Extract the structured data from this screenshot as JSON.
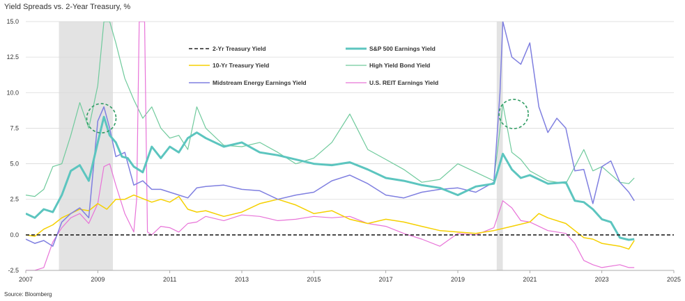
{
  "title": "Yield Spreads vs. 2-Year Treasury, %",
  "source": "Source: Bloomberg",
  "chart_data": {
    "type": "line",
    "xlim": [
      2007,
      2025
    ],
    "ylim": [
      -2.5,
      15.0
    ],
    "x_ticks": [
      2007,
      2009,
      2011,
      2013,
      2015,
      2017,
      2019,
      2021,
      2023,
      2025
    ],
    "x_tick_labels": [
      "2007",
      "2009",
      "2011",
      "2013",
      "2015",
      "2017",
      "2019",
      "2021",
      "2023",
      "2025"
    ],
    "y_ticks": [
      -2.5,
      0.0,
      2.5,
      5.0,
      7.5,
      10.0,
      12.5,
      15.0
    ],
    "y_tick_labels": [
      "-2.5",
      "0.0",
      "2.5",
      "5.0",
      "7.5",
      "10.0",
      "12.5",
      "15.0"
    ],
    "grid": "horizontal",
    "legend": "top-center",
    "shaded_periods": [
      [
        2007.92,
        2009.42
      ],
      [
        2020.08,
        2020.25
      ]
    ],
    "highlight_circles": [
      {
        "x": 2009.1,
        "y": 8.2
      },
      {
        "x": 2020.55,
        "y": 8.5
      }
    ],
    "series": [
      {
        "name": "2-Yr Treasury Yield",
        "color": "#222222",
        "dash": "dashed",
        "width": 1.6,
        "points": [
          [
            2007,
            0
          ],
          [
            2025,
            0
          ]
        ]
      },
      {
        "name": "S&P 500 Earnings Yield",
        "color": "#5cc5bf",
        "dash": "solid",
        "width": 3,
        "points": [
          [
            2007.0,
            1.5
          ],
          [
            2007.25,
            1.2
          ],
          [
            2007.5,
            1.8
          ],
          [
            2007.75,
            1.6
          ],
          [
            2008.0,
            2.8
          ],
          [
            2008.25,
            4.5
          ],
          [
            2008.5,
            4.9
          ],
          [
            2008.75,
            3.8
          ],
          [
            2009.0,
            6.5
          ],
          [
            2009.17,
            8.3
          ],
          [
            2009.33,
            7.0
          ],
          [
            2009.5,
            6.5
          ],
          [
            2009.67,
            5.5
          ],
          [
            2009.83,
            5.4
          ],
          [
            2010.0,
            4.8
          ],
          [
            2010.25,
            4.4
          ],
          [
            2010.5,
            6.2
          ],
          [
            2010.75,
            5.4
          ],
          [
            2011.0,
            6.2
          ],
          [
            2011.25,
            5.8
          ],
          [
            2011.5,
            6.8
          ],
          [
            2011.75,
            7.2
          ],
          [
            2012.0,
            6.8
          ],
          [
            2012.5,
            6.2
          ],
          [
            2013.0,
            6.5
          ],
          [
            2013.5,
            5.8
          ],
          [
            2014.0,
            5.6
          ],
          [
            2014.5,
            5.3
          ],
          [
            2015.0,
            5.0
          ],
          [
            2015.5,
            4.9
          ],
          [
            2016.0,
            5.1
          ],
          [
            2016.5,
            4.6
          ],
          [
            2017.0,
            4.0
          ],
          [
            2017.5,
            3.8
          ],
          [
            2018.0,
            3.5
          ],
          [
            2018.5,
            3.3
          ],
          [
            2019.0,
            2.8
          ],
          [
            2019.5,
            3.4
          ],
          [
            2020.0,
            3.6
          ],
          [
            2020.25,
            5.7
          ],
          [
            2020.5,
            4.6
          ],
          [
            2020.75,
            4.0
          ],
          [
            2021.0,
            4.2
          ],
          [
            2021.5,
            3.6
          ],
          [
            2022.0,
            3.7
          ],
          [
            2022.25,
            2.4
          ],
          [
            2022.5,
            2.3
          ],
          [
            2022.75,
            1.8
          ],
          [
            2023.0,
            1.1
          ],
          [
            2023.25,
            0.9
          ],
          [
            2023.5,
            -0.2
          ],
          [
            2023.75,
            -0.35
          ],
          [
            2023.9,
            -0.3
          ]
        ]
      },
      {
        "name": "10-Yr Treasury Yield",
        "color": "#f5d000",
        "dash": "solid",
        "width": 1.5,
        "points": [
          [
            2007.0,
            0.0
          ],
          [
            2007.25,
            -0.1
          ],
          [
            2007.5,
            0.4
          ],
          [
            2007.75,
            0.7
          ],
          [
            2008.0,
            1.2
          ],
          [
            2008.5,
            1.8
          ],
          [
            2008.75,
            1.7
          ],
          [
            2009.0,
            2.2
          ],
          [
            2009.25,
            1.8
          ],
          [
            2009.5,
            2.5
          ],
          [
            2009.75,
            2.5
          ],
          [
            2010.0,
            2.8
          ],
          [
            2010.5,
            2.3
          ],
          [
            2010.75,
            2.5
          ],
          [
            2011.0,
            2.3
          ],
          [
            2011.25,
            2.7
          ],
          [
            2011.5,
            1.8
          ],
          [
            2011.75,
            1.6
          ],
          [
            2012.0,
            1.7
          ],
          [
            2012.5,
            1.3
          ],
          [
            2013.0,
            1.6
          ],
          [
            2013.5,
            2.2
          ],
          [
            2014.0,
            2.5
          ],
          [
            2014.5,
            2.1
          ],
          [
            2015.0,
            1.5
          ],
          [
            2015.5,
            1.7
          ],
          [
            2016.0,
            1.1
          ],
          [
            2016.5,
            0.8
          ],
          [
            2017.0,
            1.1
          ],
          [
            2017.5,
            0.9
          ],
          [
            2018.0,
            0.6
          ],
          [
            2018.5,
            0.3
          ],
          [
            2019.0,
            0.2
          ],
          [
            2019.5,
            0.1
          ],
          [
            2020.0,
            0.3
          ],
          [
            2020.5,
            0.6
          ],
          [
            2021.0,
            0.9
          ],
          [
            2021.25,
            1.5
          ],
          [
            2021.5,
            1.2
          ],
          [
            2022.0,
            0.8
          ],
          [
            2022.25,
            0.3
          ],
          [
            2022.5,
            -0.2
          ],
          [
            2022.75,
            -0.3
          ],
          [
            2023.0,
            -0.6
          ],
          [
            2023.5,
            -0.8
          ],
          [
            2023.75,
            -1.0
          ],
          [
            2023.9,
            -0.4
          ]
        ]
      },
      {
        "name": "High Yield Bond Yield",
        "color": "#6fca9c",
        "dash": "solid",
        "width": 1.2,
        "points": [
          [
            2007.0,
            2.8
          ],
          [
            2007.25,
            2.7
          ],
          [
            2007.5,
            3.2
          ],
          [
            2007.75,
            4.8
          ],
          [
            2008.0,
            5.0
          ],
          [
            2008.25,
            7.0
          ],
          [
            2008.5,
            9.3
          ],
          [
            2008.75,
            7.5
          ],
          [
            2009.0,
            10.5
          ],
          [
            2009.17,
            15.0
          ],
          [
            2009.33,
            15.0
          ],
          [
            2009.5,
            13.5
          ],
          [
            2009.75,
            11.0
          ],
          [
            2010.0,
            9.5
          ],
          [
            2010.25,
            8.2
          ],
          [
            2010.5,
            9.0
          ],
          [
            2010.75,
            7.5
          ],
          [
            2011.0,
            6.8
          ],
          [
            2011.25,
            7.0
          ],
          [
            2011.5,
            6.0
          ],
          [
            2011.75,
            9.0
          ],
          [
            2012.0,
            7.5
          ],
          [
            2012.5,
            6.3
          ],
          [
            2013.0,
            6.2
          ],
          [
            2013.5,
            6.5
          ],
          [
            2014.0,
            5.8
          ],
          [
            2014.5,
            5.0
          ],
          [
            2015.0,
            5.4
          ],
          [
            2015.5,
            6.5
          ],
          [
            2016.0,
            8.5
          ],
          [
            2016.5,
            6.0
          ],
          [
            2017.0,
            5.3
          ],
          [
            2017.5,
            4.6
          ],
          [
            2018.0,
            3.7
          ],
          [
            2018.5,
            3.9
          ],
          [
            2019.0,
            5.0
          ],
          [
            2019.5,
            4.4
          ],
          [
            2020.0,
            3.8
          ],
          [
            2020.25,
            9.2
          ],
          [
            2020.5,
            5.8
          ],
          [
            2020.75,
            5.3
          ],
          [
            2021.0,
            4.5
          ],
          [
            2021.5,
            3.8
          ],
          [
            2022.0,
            3.6
          ],
          [
            2022.5,
            6.0
          ],
          [
            2022.75,
            4.5
          ],
          [
            2023.0,
            4.8
          ],
          [
            2023.5,
            3.7
          ],
          [
            2023.75,
            3.6
          ],
          [
            2023.9,
            4.0
          ]
        ]
      },
      {
        "name": "Midstream Energy Earnings Yield",
        "color": "#7f7fe0",
        "dash": "solid",
        "width": 1.5,
        "points": [
          [
            2007.0,
            -0.3
          ],
          [
            2007.25,
            -0.6
          ],
          [
            2007.5,
            -0.4
          ],
          [
            2007.75,
            -0.8
          ],
          [
            2008.0,
            0.9
          ],
          [
            2008.25,
            1.5
          ],
          [
            2008.5,
            1.9
          ],
          [
            2008.75,
            1.2
          ],
          [
            2009.0,
            8.0
          ],
          [
            2009.17,
            9.0
          ],
          [
            2009.33,
            7.5
          ],
          [
            2009.5,
            5.5
          ],
          [
            2009.75,
            5.8
          ],
          [
            2010.0,
            3.5
          ],
          [
            2010.25,
            3.8
          ],
          [
            2010.5,
            3.2
          ],
          [
            2010.75,
            3.2
          ],
          [
            2011.0,
            3.0
          ],
          [
            2011.25,
            2.8
          ],
          [
            2011.5,
            2.6
          ],
          [
            2011.75,
            3.3
          ],
          [
            2012.0,
            3.4
          ],
          [
            2012.5,
            3.5
          ],
          [
            2013.0,
            3.2
          ],
          [
            2013.5,
            3.1
          ],
          [
            2014.0,
            2.5
          ],
          [
            2014.5,
            2.8
          ],
          [
            2015.0,
            3.0
          ],
          [
            2015.5,
            3.8
          ],
          [
            2016.0,
            4.2
          ],
          [
            2016.5,
            3.6
          ],
          [
            2017.0,
            2.8
          ],
          [
            2017.5,
            2.6
          ],
          [
            2018.0,
            3.0
          ],
          [
            2018.5,
            3.2
          ],
          [
            2019.0,
            3.3
          ],
          [
            2019.5,
            3.0
          ],
          [
            2020.0,
            3.7
          ],
          [
            2020.17,
            10.0
          ],
          [
            2020.25,
            15.0
          ],
          [
            2020.5,
            12.5
          ],
          [
            2020.75,
            12.0
          ],
          [
            2021.0,
            13.5
          ],
          [
            2021.25,
            9.0
          ],
          [
            2021.5,
            7.2
          ],
          [
            2021.75,
            8.2
          ],
          [
            2022.0,
            7.5
          ],
          [
            2022.25,
            4.5
          ],
          [
            2022.5,
            4.6
          ],
          [
            2022.75,
            2.2
          ],
          [
            2023.0,
            4.8
          ],
          [
            2023.25,
            5.2
          ],
          [
            2023.5,
            3.7
          ],
          [
            2023.75,
            3.0
          ],
          [
            2023.9,
            2.4
          ]
        ]
      },
      {
        "name": "U.S. REIT Earnings Yield",
        "color": "#e873d8",
        "dash": "solid",
        "width": 1.2,
        "points": [
          [
            2007.0,
            -2.5
          ],
          [
            2007.25,
            -2.5
          ],
          [
            2007.5,
            -2.3
          ],
          [
            2007.75,
            -0.5
          ],
          [
            2008.0,
            0.5
          ],
          [
            2008.25,
            1.2
          ],
          [
            2008.5,
            1.5
          ],
          [
            2008.75,
            0.8
          ],
          [
            2009.0,
            2.2
          ],
          [
            2009.17,
            4.8
          ],
          [
            2009.33,
            5.0
          ],
          [
            2009.5,
            3.5
          ],
          [
            2009.75,
            1.5
          ],
          [
            2010.0,
            0.2
          ],
          [
            2010.08,
            2.5
          ],
          [
            2010.15,
            15.0
          ],
          [
            2010.3,
            15.0
          ],
          [
            2010.38,
            0.2
          ],
          [
            2010.5,
            0.0
          ],
          [
            2010.75,
            0.6
          ],
          [
            2011.0,
            0.5
          ],
          [
            2011.25,
            0.2
          ],
          [
            2011.5,
            0.8
          ],
          [
            2011.75,
            0.9
          ],
          [
            2012.0,
            1.3
          ],
          [
            2012.5,
            1.0
          ],
          [
            2013.0,
            1.4
          ],
          [
            2013.5,
            1.3
          ],
          [
            2014.0,
            1.0
          ],
          [
            2014.5,
            1.1
          ],
          [
            2015.0,
            1.3
          ],
          [
            2015.5,
            1.2
          ],
          [
            2016.0,
            1.3
          ],
          [
            2016.5,
            0.8
          ],
          [
            2017.0,
            0.6
          ],
          [
            2017.5,
            0.1
          ],
          [
            2018.0,
            -0.3
          ],
          [
            2018.5,
            -0.8
          ],
          [
            2019.0,
            0.1
          ],
          [
            2019.5,
            0.0
          ],
          [
            2020.0,
            0.5
          ],
          [
            2020.25,
            2.4
          ],
          [
            2020.5,
            1.9
          ],
          [
            2020.75,
            1.0
          ],
          [
            2021.0,
            0.9
          ],
          [
            2021.5,
            0.3
          ],
          [
            2022.0,
            0.1
          ],
          [
            2022.25,
            -0.6
          ],
          [
            2022.5,
            -1.8
          ],
          [
            2022.75,
            -2.1
          ],
          [
            2023.0,
            -2.3
          ],
          [
            2023.5,
            -2.1
          ],
          [
            2023.75,
            -2.3
          ],
          [
            2023.9,
            -2.3
          ]
        ]
      }
    ]
  }
}
